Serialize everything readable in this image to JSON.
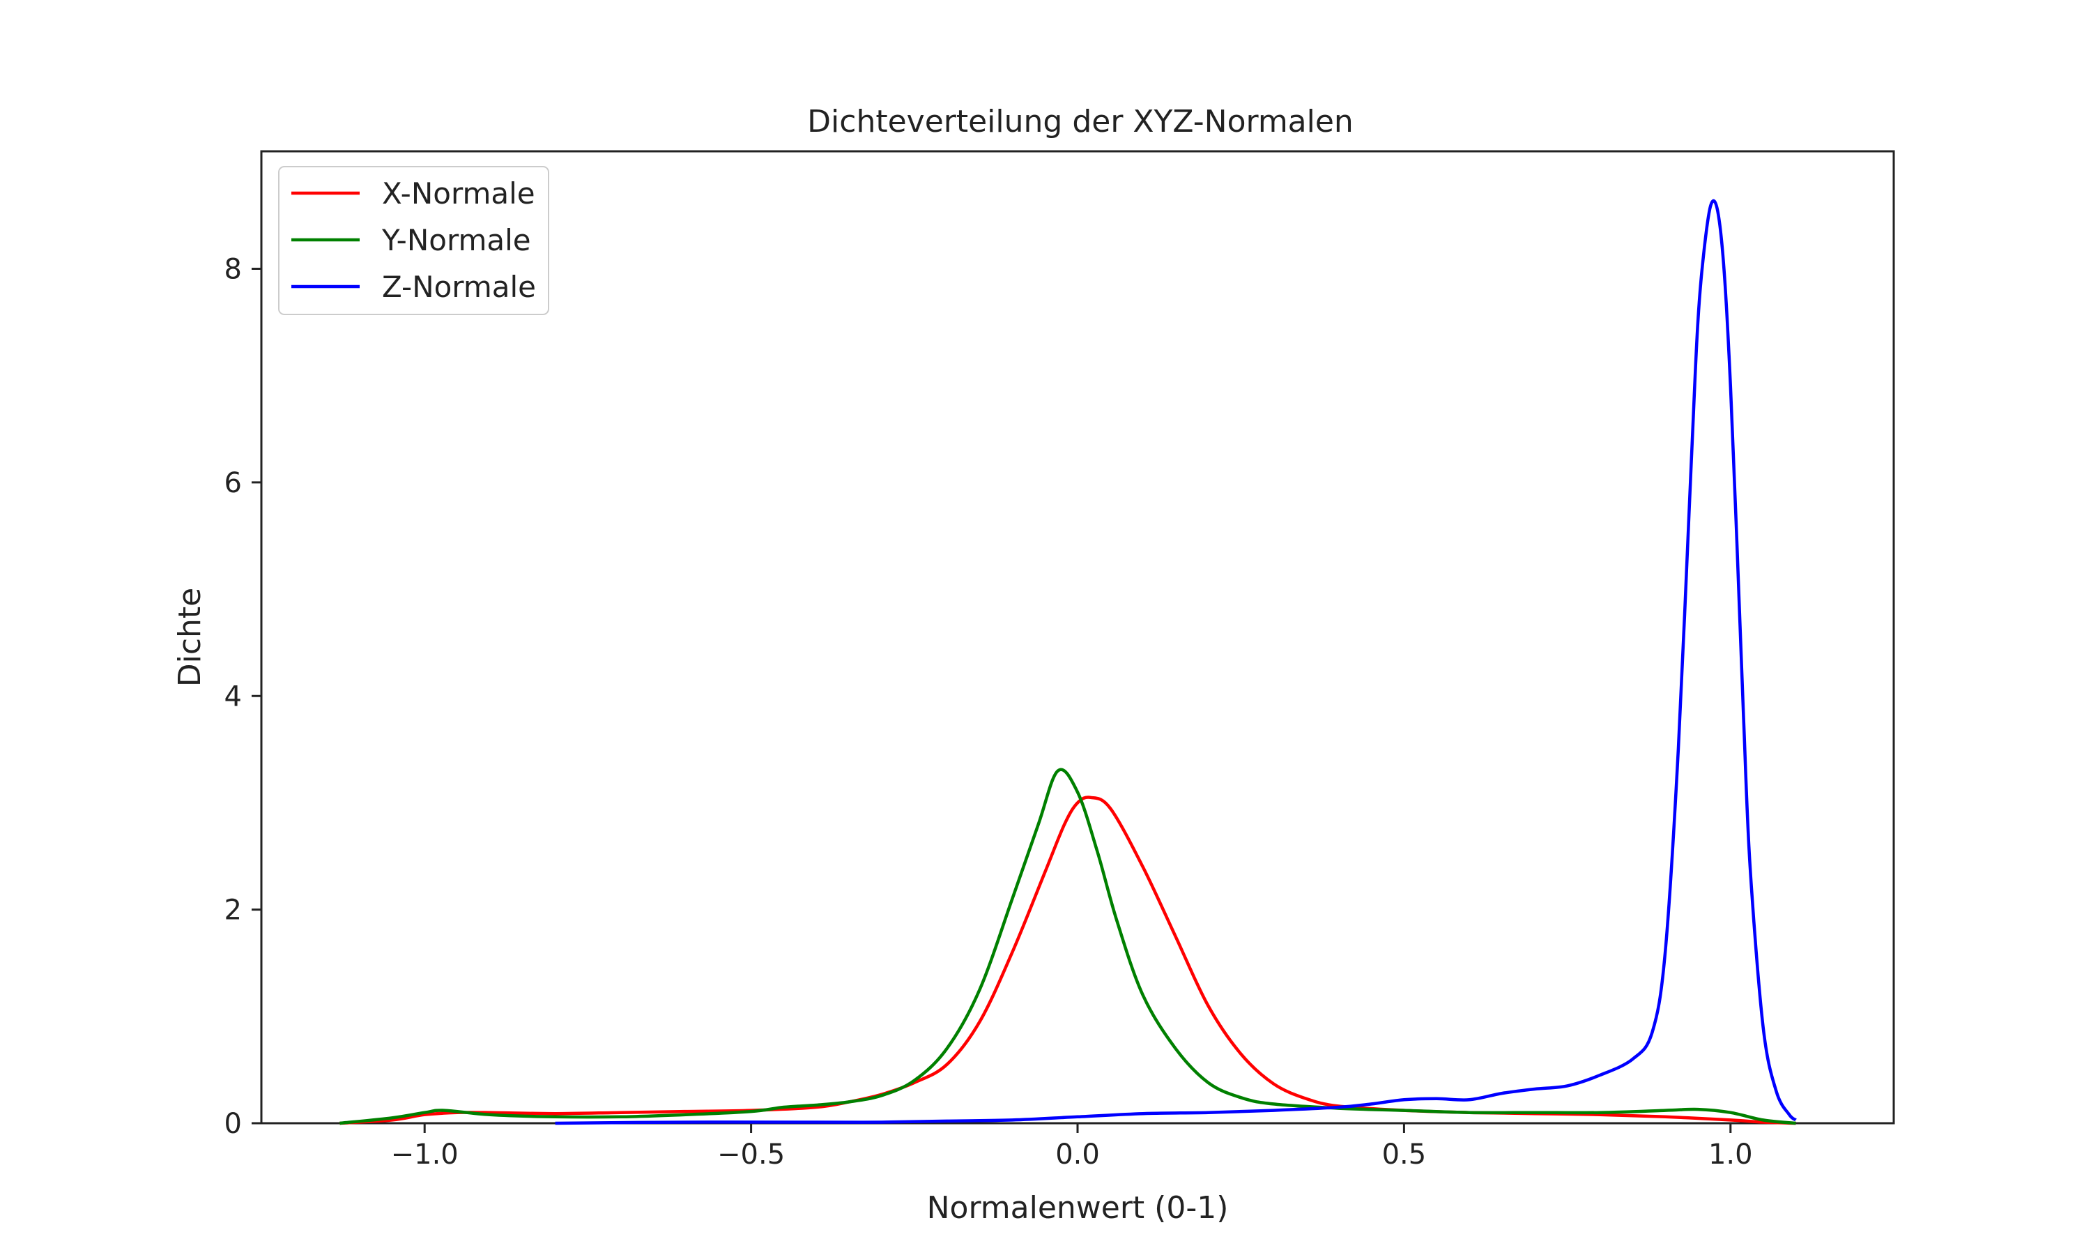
{
  "chart_data": {
    "type": "line",
    "title": "Dichteverteilung der XYZ-Normalen",
    "xlabel": "Normalenwert (0-1)",
    "ylabel": "Dichte",
    "xlim": [
      -1.25,
      1.25
    ],
    "ylim": [
      0,
      9.1
    ],
    "xticks": [
      -1.0,
      -0.5,
      0.0,
      0.5,
      1.0
    ],
    "xtick_labels": [
      "−1.0",
      "−0.5",
      "0.0",
      "0.5",
      "1.0"
    ],
    "yticks": [
      0,
      2,
      4,
      6,
      8
    ],
    "ytick_labels": [
      "0",
      "2",
      "4",
      "6",
      "8"
    ],
    "grid": false,
    "legend_position": "top-left",
    "series": [
      {
        "name": "X-Normale",
        "color": "#ff0000",
        "x": [
          -1.13,
          -1.05,
          -1.0,
          -0.95,
          -0.9,
          -0.8,
          -0.7,
          -0.6,
          -0.5,
          -0.4,
          -0.35,
          -0.3,
          -0.25,
          -0.2,
          -0.15,
          -0.1,
          -0.05,
          -0.02,
          0.0,
          0.02,
          0.05,
          0.1,
          0.15,
          0.2,
          0.25,
          0.3,
          0.35,
          0.4,
          0.5,
          0.6,
          0.7,
          0.8,
          0.9,
          1.0,
          1.05,
          1.1
        ],
        "y": [
          0.0,
          0.03,
          0.08,
          0.1,
          0.1,
          0.09,
          0.1,
          0.11,
          0.12,
          0.15,
          0.2,
          0.27,
          0.38,
          0.55,
          0.95,
          1.6,
          2.35,
          2.8,
          3.0,
          3.05,
          2.95,
          2.4,
          1.75,
          1.1,
          0.65,
          0.37,
          0.23,
          0.16,
          0.12,
          0.1,
          0.09,
          0.08,
          0.06,
          0.03,
          0.01,
          0.0
        ]
      },
      {
        "name": "Y-Normale",
        "color": "#008000",
        "x": [
          -1.13,
          -1.05,
          -1.0,
          -0.97,
          -0.9,
          -0.8,
          -0.7,
          -0.6,
          -0.5,
          -0.45,
          -0.4,
          -0.35,
          -0.3,
          -0.25,
          -0.2,
          -0.15,
          -0.1,
          -0.06,
          -0.03,
          0.0,
          0.03,
          0.06,
          0.1,
          0.15,
          0.2,
          0.25,
          0.3,
          0.4,
          0.5,
          0.6,
          0.7,
          0.8,
          0.9,
          0.95,
          1.0,
          1.05,
          1.1
        ],
        "y": [
          0.0,
          0.05,
          0.1,
          0.12,
          0.08,
          0.06,
          0.06,
          0.08,
          0.11,
          0.15,
          0.17,
          0.2,
          0.26,
          0.4,
          0.7,
          1.25,
          2.1,
          2.8,
          3.3,
          3.1,
          2.55,
          1.9,
          1.2,
          0.7,
          0.38,
          0.24,
          0.18,
          0.14,
          0.12,
          0.1,
          0.1,
          0.1,
          0.12,
          0.13,
          0.1,
          0.03,
          0.0
        ]
      },
      {
        "name": "Z-Normale",
        "color": "#0000ff",
        "x": [
          -0.8,
          -0.6,
          -0.4,
          -0.3,
          -0.2,
          -0.1,
          0.0,
          0.1,
          0.2,
          0.3,
          0.4,
          0.45,
          0.5,
          0.55,
          0.6,
          0.65,
          0.7,
          0.75,
          0.8,
          0.85,
          0.88,
          0.9,
          0.92,
          0.94,
          0.95,
          0.96,
          0.97,
          0.98,
          0.99,
          1.0,
          1.01,
          1.02,
          1.03,
          1.05,
          1.07,
          1.09,
          1.1
        ],
        "y": [
          0.0,
          0.01,
          0.01,
          0.01,
          0.02,
          0.03,
          0.06,
          0.09,
          0.1,
          0.12,
          0.15,
          0.18,
          0.22,
          0.23,
          0.22,
          0.28,
          0.32,
          0.35,
          0.45,
          0.6,
          0.85,
          1.6,
          3.5,
          6.2,
          7.5,
          8.2,
          8.6,
          8.55,
          8.0,
          6.9,
          5.4,
          3.8,
          2.4,
          0.9,
          0.3,
          0.08,
          0.03
        ]
      }
    ]
  }
}
